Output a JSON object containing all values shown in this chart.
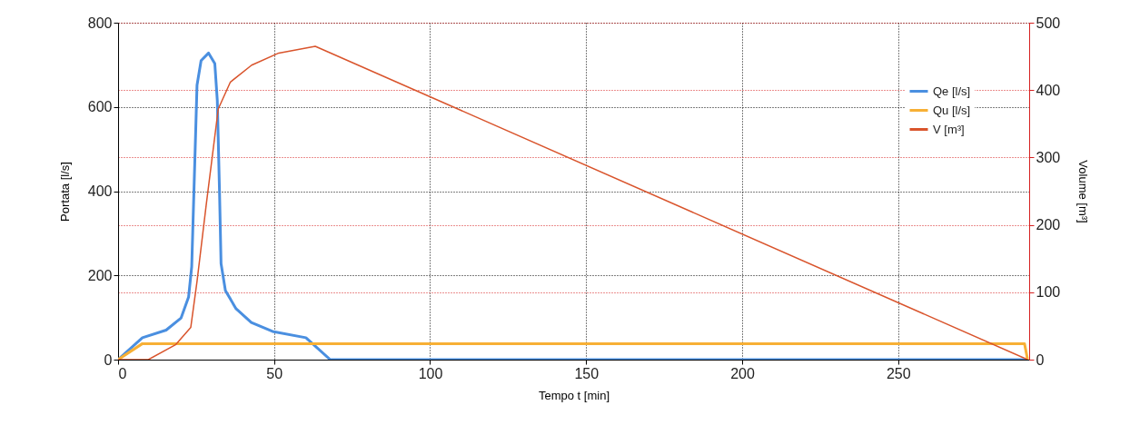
{
  "chart_data": {
    "type": "line",
    "xlabel": "Tempo t [min]",
    "ylabel": "Portata [l/s]",
    "y2label": "Volume [m³]",
    "xlim": [
      0,
      292
    ],
    "xticks": [
      0,
      50,
      100,
      150,
      200,
      250
    ],
    "ylim": [
      0,
      800
    ],
    "yticks": [
      0,
      200,
      400,
      600,
      800
    ],
    "y2lim": [
      0,
      500
    ],
    "y2ticks": [
      0,
      100,
      200,
      300,
      400,
      500
    ],
    "grid": true,
    "legend": "top right",
    "line_style": "solid",
    "marker": "none",
    "series": [
      {
        "name": "Qe [l/s]",
        "color": "#4a8fe0",
        "x": [
          0,
          7.8,
          15.4,
          20.2,
          22.6,
          23.6,
          24.6,
          25.3,
          26.6,
          29,
          31,
          31.8,
          32.5,
          33,
          34.4,
          37.8,
          42.7,
          49.5,
          60.2,
          68,
          291.5
        ],
        "values": [
          0,
          52,
          70,
          99,
          149,
          221,
          473,
          652,
          710,
          728,
          703,
          615,
          401,
          228,
          164,
          121,
          88,
          67,
          52,
          0,
          0
        ]
      },
      {
        "name": "Qu [l/s]",
        "color": "#f7b035",
        "x": [
          0,
          7.8,
          290.5,
          291.5
        ],
        "values": [
          0,
          38,
          38,
          0
        ]
      },
      {
        "name": "V [m³]",
        "color": "#d9542c",
        "axis": "y2",
        "x": [
          0,
          9.7,
          18.4,
          23.3,
          25.3,
          28.2,
          32.1,
          36,
          42.8,
          51.5,
          63.2,
          291.5
        ],
        "values": [
          0,
          0,
          22,
          48,
          116,
          228,
          372,
          412,
          437,
          455,
          465,
          0
        ]
      }
    ]
  }
}
